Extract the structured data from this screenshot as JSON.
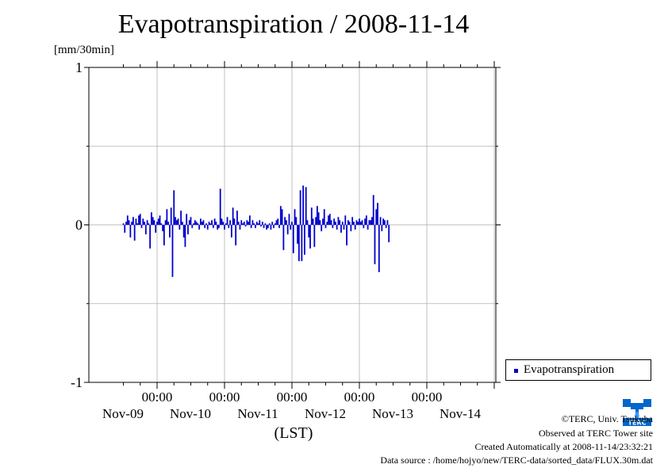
{
  "chart_data": {
    "type": "bar",
    "title": "Evapotranspiration / 2008-11-14",
    "ylabel": "[mm/30min]",
    "xlabel": "(LST)",
    "ylim": [
      -1,
      1
    ],
    "yticks": [
      "1",
      "0",
      "-1"
    ],
    "xtick_time_label": "00:00",
    "xtick_dates": [
      "Nov-09",
      "Nov-10",
      "Nov-11",
      "Nov-12",
      "Nov-13",
      "Nov-14"
    ],
    "grid": true,
    "legend_position": "bottom-right outside",
    "series": [
      {
        "name": "Evapotranspiration",
        "color": "#0000cc",
        "start": "2008-11-08T12:00",
        "interval_minutes": 30,
        "values": [
          0.01,
          -0.05,
          0.02,
          0.06,
          0.03,
          -0.08,
          0.02,
          0.05,
          -0.1,
          0.04,
          0.01,
          0.06,
          0.07,
          -0.02,
          0.04,
          0.02,
          -0.06,
          0.03,
          0.01,
          -0.15,
          0.08,
          0.05,
          0.03,
          -0.05,
          0.02,
          0.04,
          0.06,
          0.01,
          -0.04,
          -0.13,
          0.03,
          0.1,
          0.02,
          -0.08,
          0.11,
          -0.33,
          0.22,
          0.05,
          0.03,
          0.04,
          -0.03,
          0.09,
          0.02,
          -0.08,
          -0.14,
          0.07,
          -0.06,
          0.03,
          0.05,
          -0.02,
          0.01,
          0.03,
          0.02,
          0.01,
          -0.03,
          0.04,
          0.02,
          0.03,
          -0.02,
          0.01,
          -0.03,
          0.02,
          0.01,
          0.03,
          -0.02,
          0.04,
          0.02,
          -0.03,
          -0.02,
          0.23,
          0.04,
          0.02,
          -0.03,
          0.01,
          0.05,
          -0.02,
          0.03,
          -0.08,
          0.11,
          0.04,
          -0.13,
          0.09,
          0.02,
          -0.03,
          0.03,
          0.01,
          0.02,
          -0.01,
          0.03,
          0.02,
          0.06,
          -0.02,
          0.03,
          0.01,
          -0.02,
          0.02,
          0.01,
          0.03,
          -0.01,
          0.02,
          -0.02,
          0.01,
          -0.03,
          -0.02,
          0.01,
          -0.03,
          0.02,
          -0.02,
          0.01,
          0.03,
          0.04,
          -0.02,
          0.12,
          0.1,
          -0.16,
          0.05,
          0.03,
          -0.06,
          0.07,
          -0.03,
          0.02,
          -0.18,
          0.1,
          0.05,
          -0.12,
          -0.23,
          0.22,
          -0.23,
          0.25,
          -0.19,
          0.24,
          0.03,
          -0.08,
          -0.15,
          0.11,
          0.04,
          -0.14,
          0.05,
          0.12,
          0.08,
          0.03,
          -0.04,
          0.04,
          0.1,
          -0.02,
          0.02,
          0.06,
          0.07,
          0.03,
          -0.02,
          0.04,
          0.02,
          -0.03,
          0.05,
          0.03,
          -0.05,
          0.02,
          -0.03,
          0.06,
          -0.13,
          0.03,
          0.02,
          -0.04,
          0.05,
          0.02,
          -0.03,
          0.03,
          0.02,
          0.04,
          0.02,
          0.03,
          -0.02,
          0.04,
          0.06,
          -0.03,
          0.03,
          0.03,
          0.05,
          0.19,
          -0.25,
          0.1,
          0.14,
          -0.3,
          0.05,
          -0.04,
          0.04,
          0.03,
          -0.02,
          0.03,
          -0.11
        ]
      }
    ]
  },
  "legend": {
    "label": "Evapotranspiration"
  },
  "footer": {
    "copyright": "©TERC, Univ. Tsukuba",
    "site": "Observed at TERC Tower site",
    "created": "Created Automatically at 2008-11-14/23:32:21",
    "source": "Data source : /home/hojyo/new/TERC-data/sorted_data/FLUX.30m.dat"
  },
  "logo": {
    "text": "TERC",
    "icon": "terc-logo"
  }
}
